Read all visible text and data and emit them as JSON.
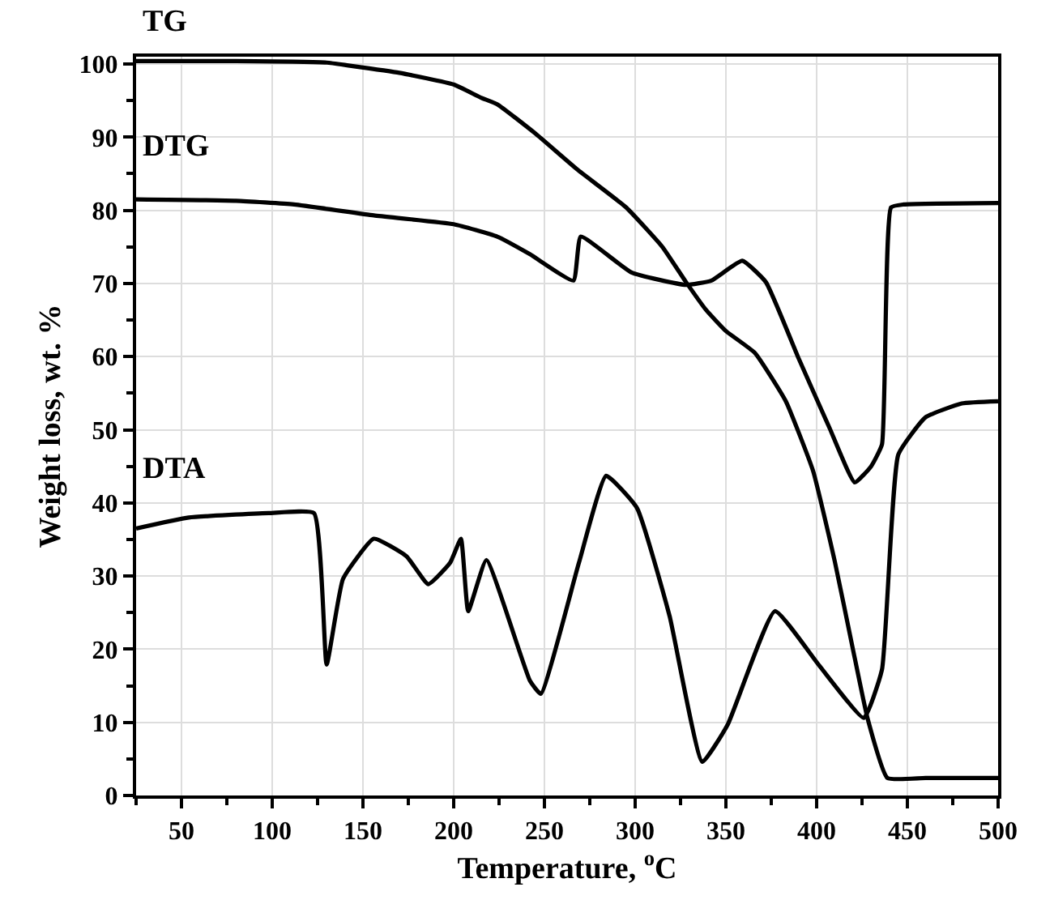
{
  "chart_data": {
    "type": "line",
    "xlabel": "Temperature, $^{o}$C",
    "ylabel": "Weight loss, wt. %",
    "xlim": [
      25,
      500
    ],
    "xticks": [
      50,
      100,
      150,
      200,
      250,
      300,
      350,
      400,
      450,
      500
    ],
    "ylim": [
      0,
      101
    ],
    "yticks": [
      0,
      10,
      20,
      30,
      40,
      50,
      60,
      70,
      80,
      90,
      100
    ],
    "grid": true,
    "legend": false,
    "marker": "none",
    "line_style": "solid",
    "series": [
      {
        "name": "TG",
        "color": "#000000",
        "x": [
          25,
          80,
          130,
          142,
          170,
          200,
          215,
          224,
          245,
          268,
          295,
          315,
          328,
          339,
          350,
          366,
          383,
          398,
          410,
          420,
          428,
          439,
          460,
          500
        ],
        "values": [
          100.4,
          100.4,
          100.2,
          99.8,
          98.8,
          97.2,
          95.4,
          94.5,
          90.5,
          85.6,
          80.4,
          75,
          70.2,
          66.4,
          63.5,
          60.5,
          53.9,
          44.4,
          32,
          20,
          10.6,
          2.4,
          2.4,
          2.4
        ]
      },
      {
        "name": "DTG",
        "color": "#000000",
        "x": [
          25,
          80,
          112,
          156,
          200,
          224,
          242,
          266,
          270,
          298,
          328,
          342,
          359,
          372,
          390,
          407,
          421,
          430,
          436,
          441,
          448,
          500
        ],
        "values": [
          81.5,
          81.3,
          80.8,
          79.3,
          78.1,
          76.4,
          74,
          70.4,
          76.4,
          71.5,
          69.8,
          70.4,
          73.1,
          70.2,
          59.8,
          50.3,
          42.8,
          45,
          48,
          80.4,
          80.8,
          81
        ]
      },
      {
        "name": "DTA",
        "color": "#000000",
        "x": [
          25,
          54,
          98,
          123,
          130,
          139,
          156,
          174,
          186,
          198,
          204,
          208,
          218,
          242,
          248,
          269,
          284,
          301,
          319,
          337,
          351,
          377,
          401,
          426,
          436,
          445,
          460,
          480,
          500
        ],
        "values": [
          36.5,
          38,
          38.6,
          38.6,
          17.9,
          29.6,
          35.1,
          32.7,
          28.9,
          31.8,
          35.1,
          25.2,
          32.2,
          15.7,
          13.9,
          31.8,
          43.7,
          39.3,
          24.5,
          4.6,
          9.7,
          25.2,
          17.9,
          10.6,
          17.2,
          46.6,
          51.7,
          53.6,
          53.9
        ]
      }
    ]
  }
}
